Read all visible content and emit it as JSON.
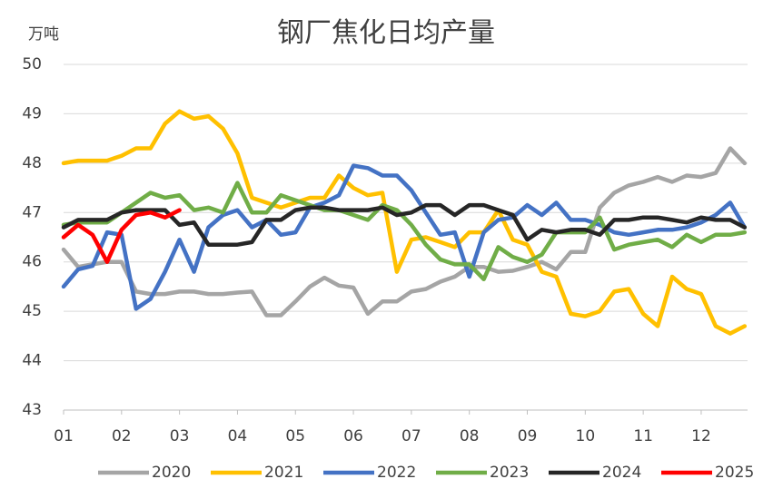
{
  "chart_data": {
    "type": "line",
    "title": "钢厂焦化日均产量",
    "y_label": "万吨",
    "x": [
      1,
      1.25,
      1.5,
      1.75,
      2,
      2.25,
      2.5,
      2.75,
      3,
      3.25,
      3.5,
      3.75,
      4,
      4.25,
      4.5,
      4.75,
      5,
      5.25,
      5.5,
      5.75,
      6,
      6.25,
      6.5,
      6.75,
      7,
      7.25,
      7.5,
      7.75,
      8,
      8.25,
      8.5,
      8.75,
      9,
      9.25,
      9.5,
      9.75,
      10,
      10.25,
      10.5,
      10.75,
      11,
      11.25,
      11.5,
      11.75,
      12,
      12.25,
      12.5,
      12.75
    ],
    "xlim": [
      1,
      12.8
    ],
    "xticks": [
      {
        "value": 1,
        "label": "01"
      },
      {
        "value": 2,
        "label": "02"
      },
      {
        "value": 3,
        "label": "03"
      },
      {
        "value": 4,
        "label": "04"
      },
      {
        "value": 5,
        "label": "05"
      },
      {
        "value": 6,
        "label": "06"
      },
      {
        "value": 7,
        "label": "07"
      },
      {
        "value": 8,
        "label": "08"
      },
      {
        "value": 9,
        "label": "09"
      },
      {
        "value": 10,
        "label": "10"
      },
      {
        "value": 11,
        "label": "11"
      },
      {
        "value": 12,
        "label": "12"
      }
    ],
    "ylim": [
      43,
      50
    ],
    "yticks": [
      43,
      44,
      45,
      46,
      47,
      48,
      49,
      50
    ],
    "grid": true,
    "series": [
      {
        "name": "2020",
        "color": "#a5a5a5",
        "values": [
          46.25,
          45.9,
          45.95,
          46.0,
          46.0,
          45.4,
          45.35,
          45.35,
          45.4,
          45.4,
          45.35,
          45.35,
          45.38,
          45.4,
          44.92,
          44.92,
          45.2,
          45.5,
          45.68,
          45.52,
          45.48,
          44.95,
          45.2,
          45.2,
          45.4,
          45.45,
          45.6,
          45.7,
          45.9,
          45.9,
          45.8,
          45.82,
          45.9,
          46.0,
          45.85,
          46.2,
          46.2,
          47.1,
          47.4,
          47.55,
          47.62,
          47.72,
          47.62,
          47.75,
          47.72,
          47.8,
          48.3,
          48.0
        ]
      },
      {
        "name": "2021",
        "color": "#ffc000",
        "values": [
          48.0,
          48.05,
          48.05,
          48.05,
          48.15,
          48.3,
          48.3,
          48.8,
          49.05,
          48.9,
          48.95,
          48.7,
          48.2,
          47.3,
          47.2,
          47.1,
          47.2,
          47.3,
          47.3,
          47.75,
          47.5,
          47.35,
          47.4,
          45.8,
          46.45,
          46.5,
          46.4,
          46.3,
          46.6,
          46.6,
          47.05,
          46.45,
          46.35,
          45.8,
          45.7,
          44.95,
          44.9,
          45.0,
          45.4,
          45.45,
          44.95,
          44.7,
          45.7,
          45.45,
          45.35,
          44.7,
          44.55,
          44.7
        ]
      },
      {
        "name": "2022",
        "color": "#4472c4",
        "values": [
          45.5,
          45.85,
          45.92,
          46.6,
          46.55,
          45.05,
          45.25,
          45.8,
          46.45,
          45.8,
          46.7,
          46.95,
          47.05,
          46.7,
          46.85,
          46.55,
          46.6,
          47.1,
          47.2,
          47.35,
          47.95,
          47.9,
          47.75,
          47.75,
          47.45,
          47.0,
          46.55,
          46.6,
          45.7,
          46.6,
          46.85,
          46.9,
          47.15,
          46.95,
          47.2,
          46.85,
          46.85,
          46.75,
          46.6,
          46.55,
          46.6,
          46.65,
          46.65,
          46.7,
          46.8,
          46.95,
          47.2,
          46.7
        ]
      },
      {
        "name": "2023",
        "color": "#70ad47",
        "values": [
          46.75,
          46.8,
          46.8,
          46.8,
          47.0,
          47.2,
          47.4,
          47.3,
          47.35,
          47.05,
          47.1,
          47.0,
          47.6,
          47.0,
          47.0,
          47.35,
          47.25,
          47.15,
          47.05,
          47.05,
          46.95,
          46.85,
          47.15,
          47.05,
          46.75,
          46.35,
          46.05,
          45.95,
          45.95,
          45.65,
          46.3,
          46.1,
          46.0,
          46.15,
          46.6,
          46.6,
          46.6,
          46.9,
          46.25,
          46.35,
          46.4,
          46.45,
          46.3,
          46.55,
          46.4,
          46.55,
          46.55,
          46.6
        ]
      },
      {
        "name": "2024",
        "color": "#262626",
        "values": [
          46.7,
          46.85,
          46.85,
          46.85,
          47.0,
          47.05,
          47.05,
          47.05,
          46.75,
          46.8,
          46.35,
          46.35,
          46.35,
          46.4,
          46.85,
          46.85,
          47.05,
          47.1,
          47.1,
          47.05,
          47.05,
          47.05,
          47.1,
          46.95,
          47.0,
          47.15,
          47.15,
          46.95,
          47.15,
          47.15,
          47.05,
          46.95,
          46.45,
          46.65,
          46.6,
          46.65,
          46.65,
          46.55,
          46.85,
          46.85,
          46.9,
          46.9,
          46.85,
          46.8,
          46.9,
          46.85,
          46.85,
          46.7
        ]
      },
      {
        "name": "2025",
        "color": "#ff0000",
        "values": [
          46.5,
          46.75,
          46.55,
          46.0,
          46.65,
          46.95,
          47.0,
          46.9,
          47.05,
          null,
          null,
          null,
          null,
          null,
          null,
          null,
          null,
          null,
          null,
          null,
          null,
          null,
          null,
          null,
          null,
          null,
          null,
          null,
          null,
          null,
          null,
          null,
          null,
          null,
          null,
          null,
          null,
          null,
          null,
          null,
          null,
          null,
          null,
          null,
          null,
          null,
          null,
          null
        ]
      }
    ]
  }
}
